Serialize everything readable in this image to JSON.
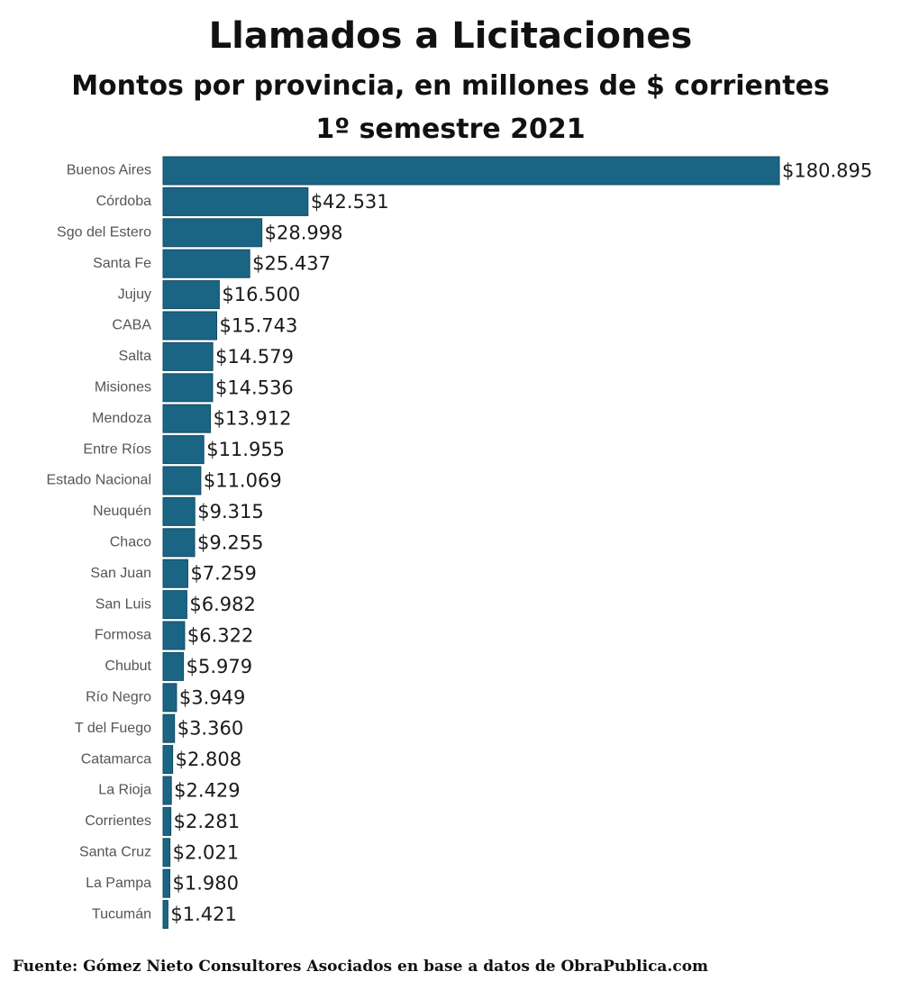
{
  "title": "Llamados a Licitaciones",
  "subtitle_line1": "Montos por provincia, en millones de $ corrientes",
  "subtitle_line2": "1º semestre 2021",
  "source": "Fuente: Gómez Nieto Consultores Asociados en base a datos de ObraPublica.com",
  "colors": {
    "bar": "#1b6584",
    "bar_edge": "#0f4a63"
  },
  "chart_data": {
    "type": "bar",
    "orientation": "horizontal",
    "title": "Llamados a Licitaciones",
    "subtitle": "Montos por provincia, en millones de $ corrientes — 1º semestre 2021",
    "xlabel": "",
    "ylabel": "",
    "grid": false,
    "categories": [
      "Buenos Aires",
      "Córdoba",
      "Sgo del Estero",
      "Santa Fe",
      "Jujuy",
      "CABA",
      "Salta",
      "Misiones",
      "Mendoza",
      "Entre Ríos",
      "Estado Nacional",
      "Neuquén",
      "Chaco",
      "San Juan",
      "San Luis",
      "Formosa",
      "Chubut",
      "Río Negro",
      "T del Fuego",
      "Catamarca",
      "La Rioja",
      "Corrientes",
      "Santa Cruz",
      "La Pampa",
      "Tucumán"
    ],
    "values": [
      180895,
      42531,
      28998,
      25437,
      16500,
      15743,
      14579,
      14536,
      13912,
      11955,
      11069,
      9315,
      9255,
      7259,
      6982,
      6322,
      5979,
      3949,
      3360,
      2808,
      2429,
      2281,
      2021,
      1980,
      1421
    ],
    "value_labels": [
      "$180.895",
      "$42.531",
      "$28.998",
      "$25.437",
      "$16.500",
      "$15.743",
      "$14.579",
      "$14.536",
      "$13.912",
      "$11.955",
      "$11.069",
      "$9.315",
      "$9.255",
      "$7.259",
      "$6.982",
      "$6.322",
      "$5.979",
      "$3.949",
      "$3.360",
      "$2.808",
      "$2.429",
      "$2.281",
      "$2.021",
      "$1.980",
      "$1.421"
    ],
    "xlim": [
      0,
      180895
    ]
  }
}
